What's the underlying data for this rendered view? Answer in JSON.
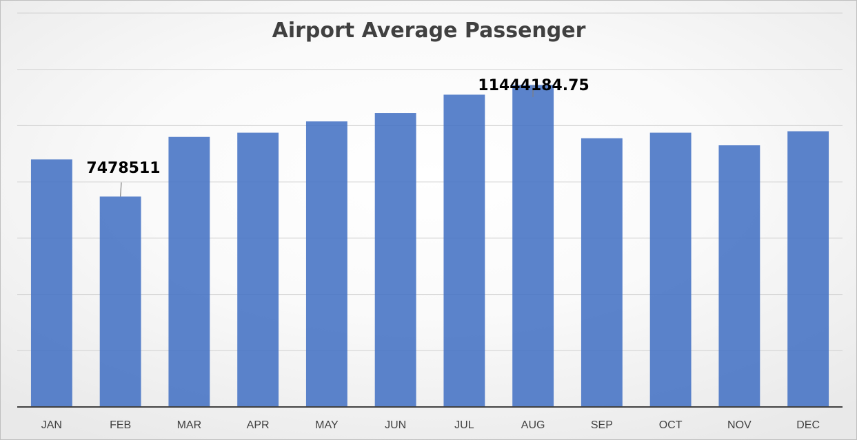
{
  "chart_data": {
    "type": "bar",
    "title": "Airport Average Passenger",
    "xlabel": "",
    "ylabel": "",
    "categories": [
      "JAN",
      "FEB",
      "MAR",
      "APR",
      "MAY",
      "JUN",
      "JUL",
      "AUG",
      "SEP",
      "OCT",
      "NOV",
      "DEC"
    ],
    "values": [
      8800000,
      7478511,
      9600000,
      9750000,
      10150000,
      10450000,
      11100000,
      11444184.75,
      9550000,
      9750000,
      9300000,
      9800000
    ],
    "ylim": [
      0,
      14000000
    ],
    "ytick_step": 2000000,
    "show_y_tick_labels": false,
    "grid": true,
    "legend": "none",
    "bar_color": "#4472C4",
    "data_labels": [
      {
        "category": "FEB",
        "text": "7478511"
      },
      {
        "category": "AUG",
        "text": "11444184.75"
      }
    ]
  }
}
